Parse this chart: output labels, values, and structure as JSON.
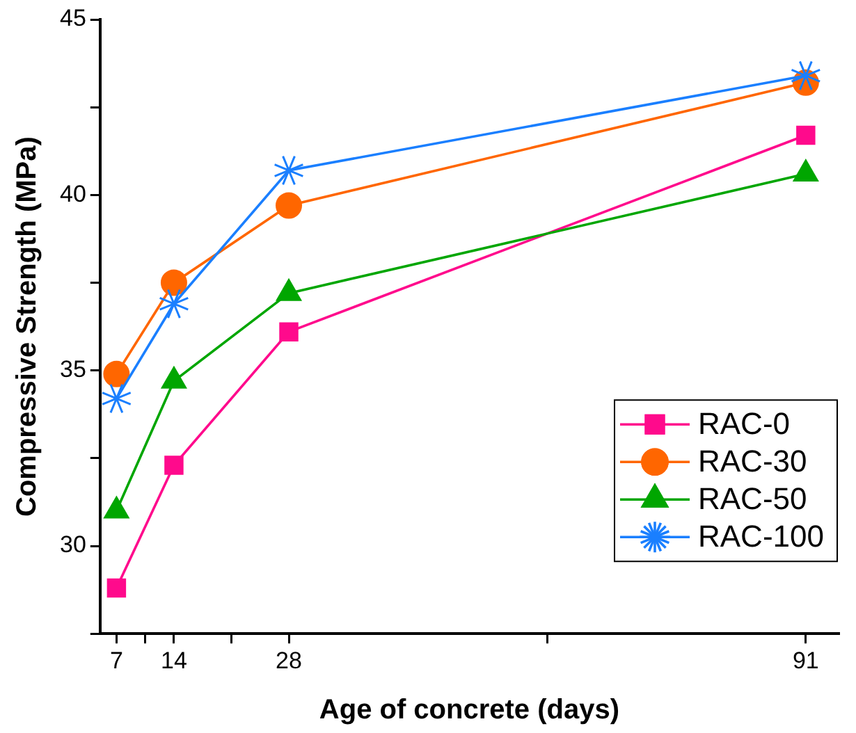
{
  "chart_data": {
    "type": "line",
    "xlabel": "Age of concrete (days)",
    "ylabel": "Compressive Strength (MPa)",
    "x": [
      7,
      14,
      28,
      91
    ],
    "xlim": [
      5,
      95
    ],
    "xticks": [
      7,
      {
        "value": 10.5,
        "label": null
      },
      14,
      {
        "value": 21,
        "label": null
      },
      28,
      {
        "value": 59.5,
        "label": null
      },
      91
    ],
    "ylim": [
      27.5,
      45
    ],
    "yticks": [
      {
        "value": 27.5,
        "label": null
      },
      30,
      {
        "value": 32.5,
        "label": null
      },
      35,
      {
        "value": 37.5,
        "label": null
      },
      40,
      {
        "value": 42.5,
        "label": null
      },
      45
    ],
    "grid": false,
    "legend": "bottom right",
    "line_style": "solid",
    "series": [
      {
        "name": "RAC-0",
        "color": "#ff0a8c",
        "marker": "square",
        "values": [
          28.8,
          32.3,
          36.1,
          41.7
        ]
      },
      {
        "name": "RAC-30",
        "color": "#ff6600",
        "marker": "circle",
        "values": [
          34.9,
          37.5,
          39.7,
          43.2
        ]
      },
      {
        "name": "RAC-50",
        "color": "#00a600",
        "marker": "triangle",
        "values": [
          31.0,
          34.7,
          37.2,
          40.6
        ]
      },
      {
        "name": "RAC-100",
        "color": "#1a7fff",
        "marker": "cross",
        "values": [
          34.2,
          36.9,
          40.7,
          43.4
        ]
      }
    ]
  }
}
